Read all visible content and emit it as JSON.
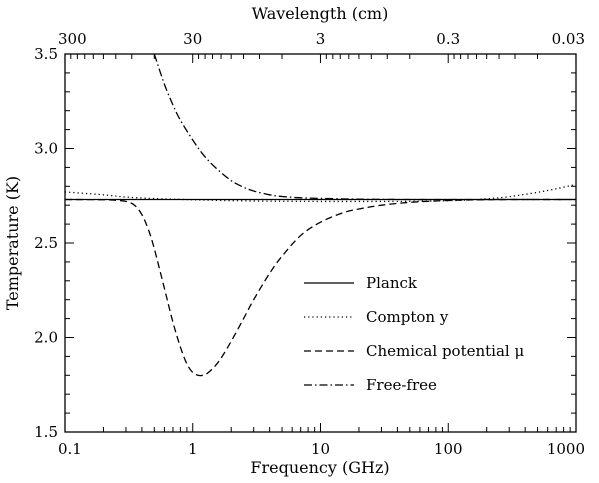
{
  "chart_data": {
    "type": "line",
    "xlabel": "Frequency (GHz)",
    "ylabel": "Temperature  (K)",
    "top_axis_label": "Wavelength (cm)",
    "x_scale": "log",
    "xlim": [
      0.1,
      1000
    ],
    "ylim": [
      1.5,
      3.5
    ],
    "x_ticks": [
      0.1,
      1,
      10,
      100,
      1000
    ],
    "x_tick_labels": [
      "0.1",
      "1",
      "10",
      "100",
      "1000"
    ],
    "y_ticks": [
      1.5,
      2.0,
      2.5,
      3.0,
      3.5
    ],
    "y_tick_labels": [
      "1.5",
      "2.0",
      "2.5",
      "3.0",
      "3.5"
    ],
    "top_ticks": [
      300,
      30,
      3,
      0.3,
      0.03
    ],
    "top_tick_labels": [
      "300",
      "30",
      "3",
      "0.3",
      "0.03"
    ],
    "grid": false,
    "legend_position": "bottom-right",
    "series": [
      {
        "name": "Planck",
        "style": "solid",
        "x": [
          0.1,
          1,
          10,
          100,
          1000
        ],
        "y": [
          2.73,
          2.73,
          2.73,
          2.73,
          2.73
        ]
      },
      {
        "name": "Compton y",
        "style": "dotted",
        "x": [
          0.1,
          0.2,
          0.3,
          0.5,
          1,
          2,
          5,
          10,
          30,
          60,
          100,
          150,
          200,
          300,
          500,
          700,
          1000
        ],
        "y": [
          2.77,
          2.755,
          2.743,
          2.735,
          2.729,
          2.724,
          2.721,
          2.72,
          2.72,
          2.721,
          2.724,
          2.728,
          2.734,
          2.745,
          2.768,
          2.787,
          2.81
        ]
      },
      {
        "name": "Chemical potential μ",
        "style": "dashed",
        "x": [
          0.1,
          0.2,
          0.25,
          0.3,
          0.35,
          0.4,
          0.45,
          0.5,
          0.6,
          0.7,
          0.8,
          0.9,
          1.0,
          1.1,
          1.2,
          1.3,
          1.5,
          1.7,
          2.0,
          2.5,
          3.0,
          4.0,
          5.0,
          7.0,
          10,
          15,
          20,
          30,
          50,
          100,
          200,
          300,
          500,
          1000
        ],
        "y": [
          2.73,
          2.729,
          2.726,
          2.72,
          2.7,
          2.65,
          2.57,
          2.47,
          2.26,
          2.08,
          1.95,
          1.86,
          1.815,
          1.8,
          1.8,
          1.81,
          1.85,
          1.9,
          1.98,
          2.1,
          2.2,
          2.34,
          2.43,
          2.54,
          2.61,
          2.66,
          2.68,
          2.7,
          2.715,
          2.725,
          2.729,
          2.73,
          2.73,
          2.73
        ]
      },
      {
        "name": "Free-free",
        "style": "dashdot",
        "x": [
          0.5,
          0.6,
          0.7,
          0.8,
          1.0,
          1.2,
          1.5,
          2.0,
          2.5,
          3.0,
          4.0,
          5.0,
          7.0,
          10,
          20,
          50,
          100,
          1000
        ],
        "y": [
          3.5,
          3.34,
          3.23,
          3.15,
          3.045,
          2.97,
          2.9,
          2.83,
          2.795,
          2.775,
          2.755,
          2.746,
          2.739,
          2.736,
          2.732,
          2.73,
          2.73,
          2.73
        ]
      }
    ]
  }
}
